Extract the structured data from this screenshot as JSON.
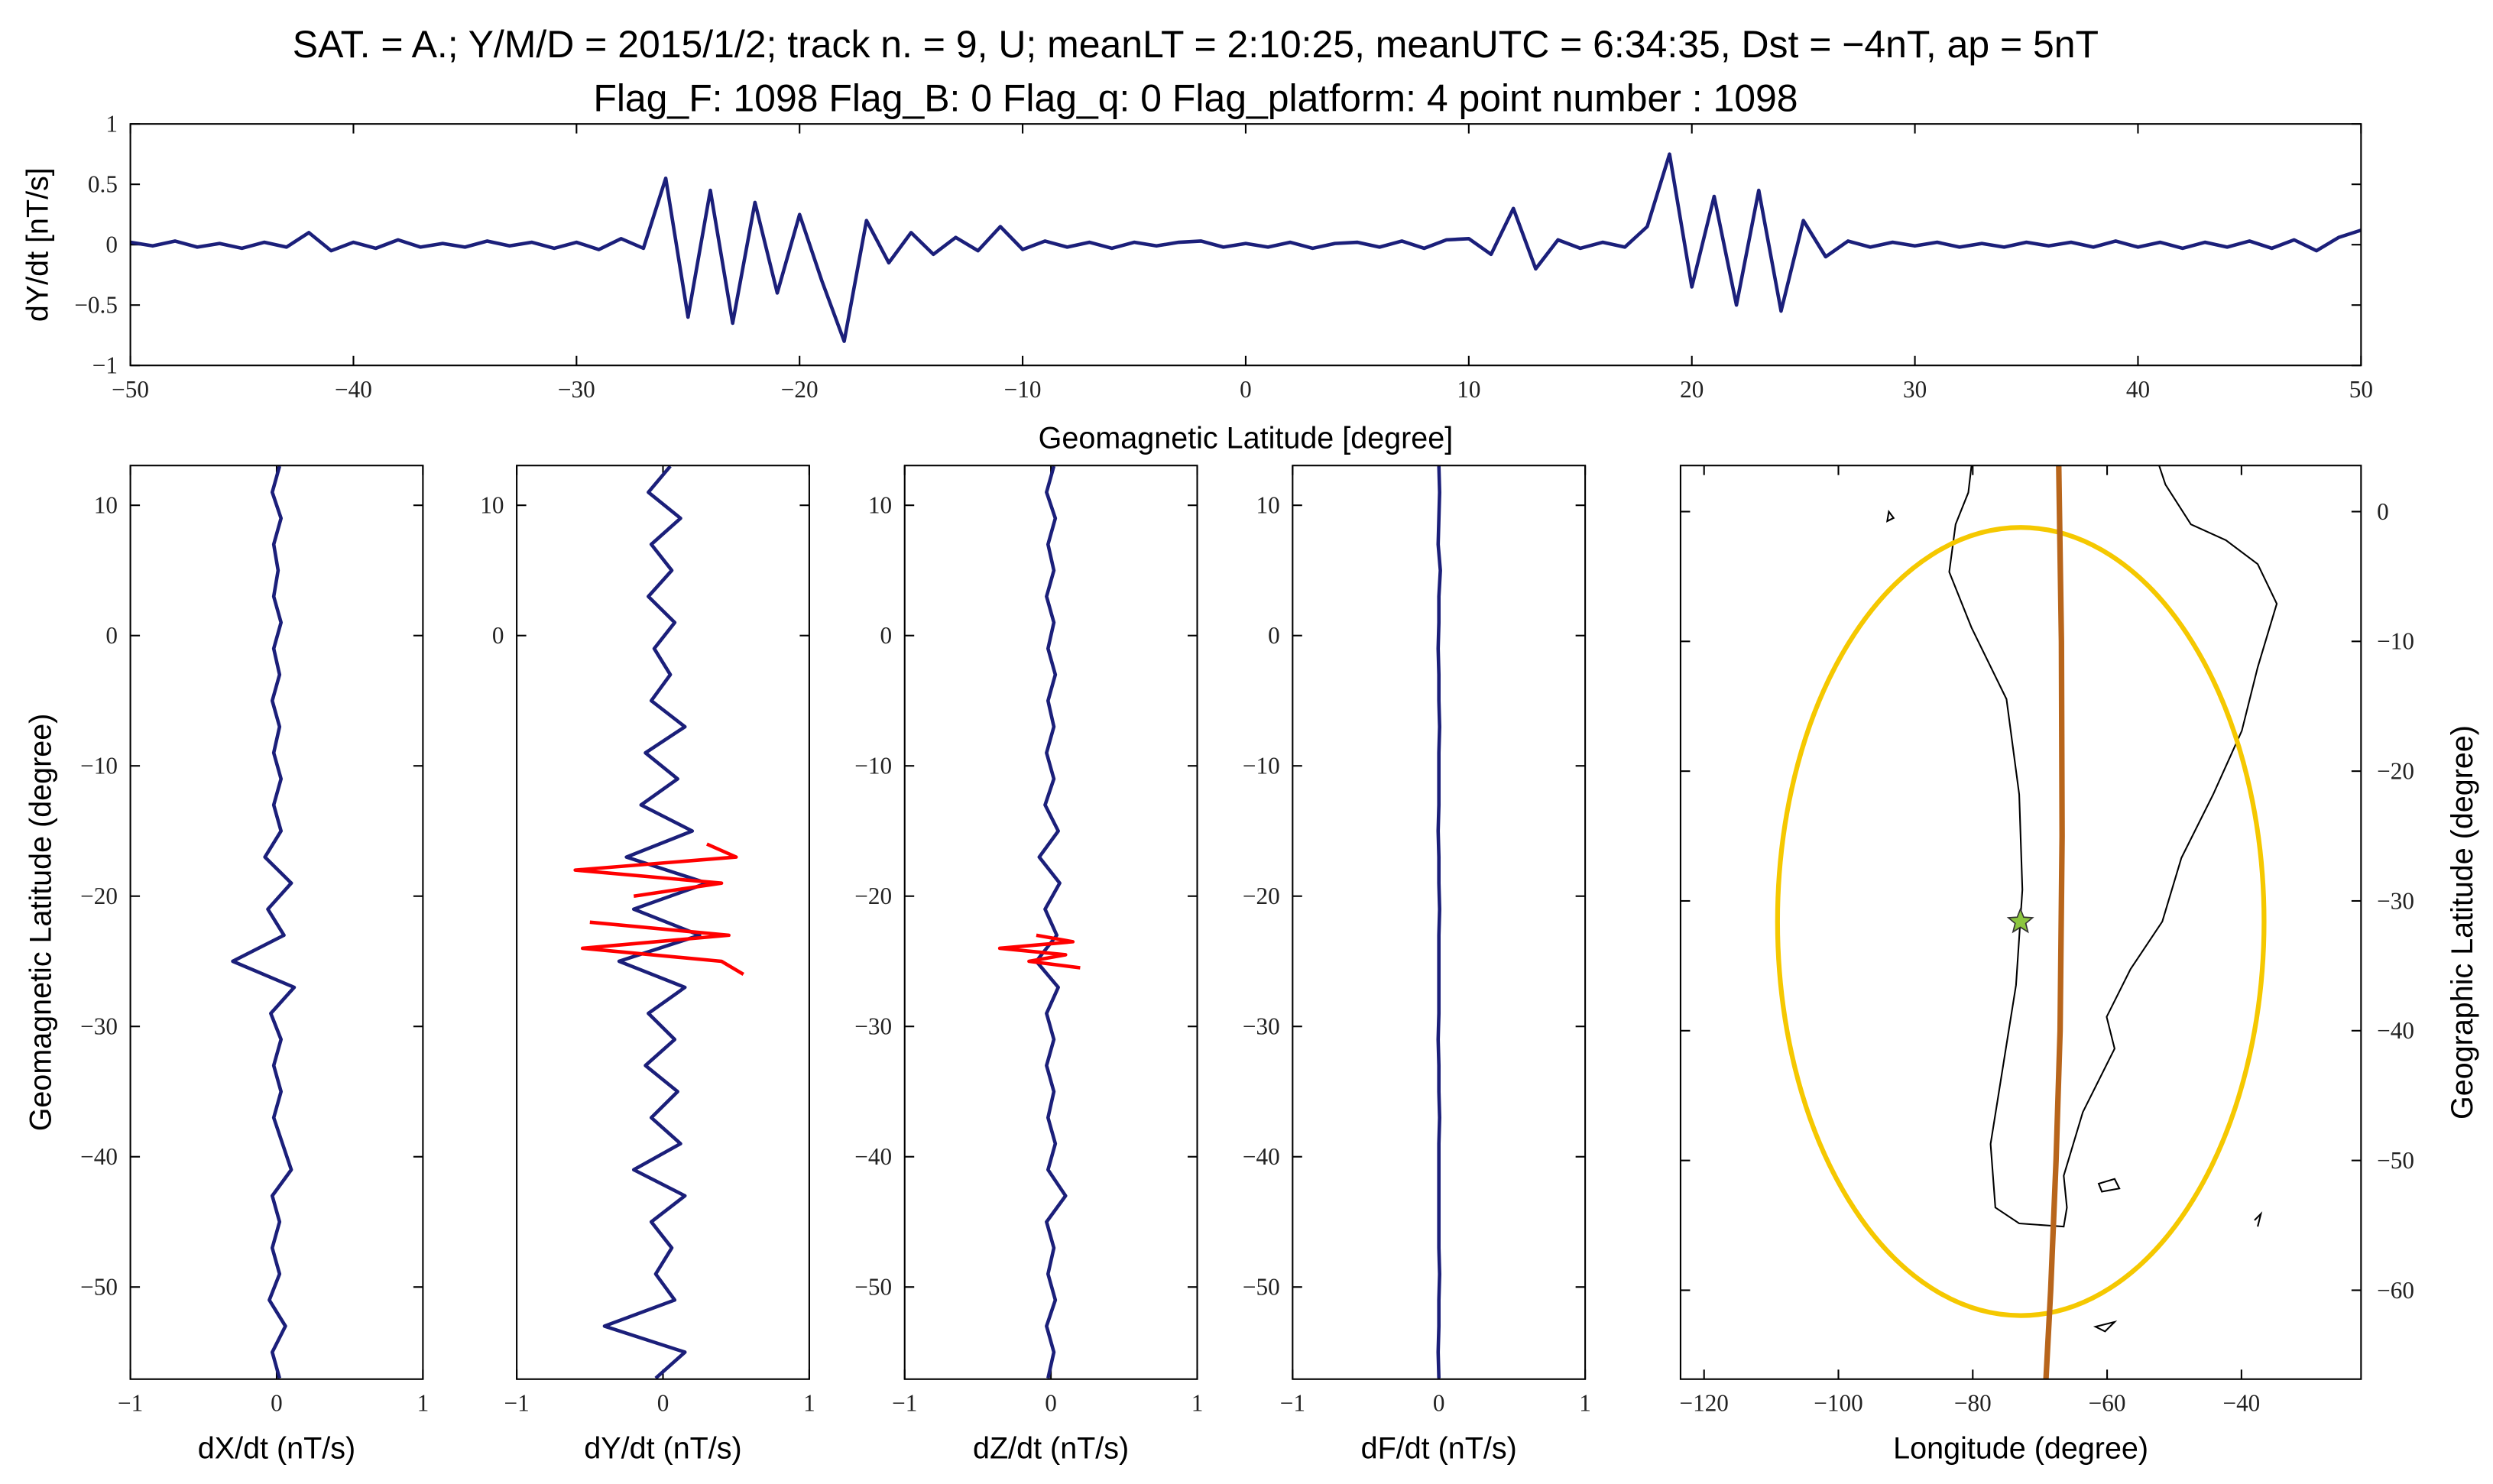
{
  "chart_data": [
    {
      "type": "line",
      "title": "SAT. = A.; Y/M/D = 2015/1/2; track n. = 9, U; meanLT = 2:10:25, meanUTC = 6:34:35, Dst = −4nT, ap = 5nT",
      "subtitle": "Flag_F: 1098 Flag_B: 0 Flag_q: 0 Flag_platform: 4 point number : 1098",
      "xlabel": "Geomagnetic Latitude [degree]",
      "ylabel": "dY/dt [nT/s]",
      "x": [
        -50,
        -49,
        -48,
        -47,
        -46,
        -45,
        -44,
        -43,
        -42,
        -41,
        -40,
        -39,
        -38,
        -37,
        -36,
        -35,
        -34,
        -33,
        -32,
        -31,
        -30,
        -29,
        -28,
        -27,
        -26,
        -25,
        -24,
        -23,
        -22,
        -21,
        -20,
        -19,
        -18,
        -17,
        -16,
        -15,
        -14,
        -13,
        -12,
        -11,
        -10,
        -9,
        -8,
        -7,
        -6,
        -5,
        -4,
        -3,
        -2,
        -1,
        0,
        1,
        2,
        3,
        4,
        5,
        6,
        7,
        8,
        9,
        10,
        11,
        12,
        13,
        14,
        15,
        16,
        17,
        18,
        19,
        20,
        21,
        22,
        23,
        24,
        25,
        26,
        27,
        28,
        29,
        30,
        31,
        32,
        33,
        34,
        35,
        36,
        37,
        38,
        39,
        40,
        41,
        42,
        43,
        44,
        45,
        46,
        47,
        48,
        49,
        50
      ],
      "series": [
        {
          "color": "#1b1f7a",
          "values": [
            0.02,
            -0.01,
            0.03,
            -0.02,
            0.01,
            -0.03,
            0.02,
            -0.02,
            0.1,
            -0.05,
            0.02,
            -0.03,
            0.04,
            -0.02,
            0.01,
            -0.02,
            0.03,
            -0.01,
            0.02,
            -0.03,
            0.02,
            -0.04,
            0.05,
            -0.03,
            0.55,
            -0.6,
            0.45,
            -0.65,
            0.35,
            -0.4,
            0.25,
            -0.3,
            -0.8,
            0.2,
            -0.15,
            0.1,
            -0.08,
            0.06,
            -0.05,
            0.15,
            -0.04,
            0.03,
            -0.02,
            0.02,
            -0.03,
            0.02,
            -0.01,
            0.02,
            0.03,
            -0.02,
            0.01,
            -0.02,
            0.02,
            -0.03,
            0.01,
            0.02,
            -0.02,
            0.03,
            -0.03,
            0.04,
            0.05,
            -0.08,
            0.3,
            -0.2,
            0.04,
            -0.03,
            0.02,
            -0.02,
            0.15,
            0.75,
            -0.35,
            0.4,
            -0.5,
            0.45,
            -0.55,
            0.2,
            -0.1,
            0.03,
            -0.02,
            0.02,
            -0.01,
            0.02,
            -0.02,
            0.01,
            -0.02,
            0.02,
            -0.01,
            0.02,
            -0.02,
            0.03,
            -0.02,
            0.02,
            -0.03,
            0.02,
            -0.02,
            0.03,
            -0.03,
            0.04,
            -0.05,
            0.06,
            0.12
          ]
        }
      ],
      "xlim": [
        -50,
        50
      ],
      "xticks": [
        {
          "value": -50,
          "label": "−50"
        },
        {
          "value": -40,
          "label": "−40"
        },
        {
          "value": -30,
          "label": "−30"
        },
        {
          "value": -20,
          "label": "−20"
        },
        {
          "value": -10,
          "label": "−10"
        },
        0,
        10,
        20,
        30,
        40,
        50
      ],
      "ylim": [
        -1,
        1
      ],
      "yticks": [
        {
          "value": -1,
          "label": "−1"
        },
        {
          "value": -0.5,
          "label": "−0.5"
        },
        0,
        0.5,
        1
      ]
    },
    {
      "type": "line",
      "orientation": "horizontal",
      "xlabel": "dX/dt (nT/s)",
      "ylabel": "Geomagnetic Latitude (degree)",
      "y": [
        13,
        11,
        9,
        7,
        5,
        3,
        1,
        -1,
        -3,
        -5,
        -7,
        -9,
        -11,
        -13,
        -15,
        -17,
        -19,
        -21,
        -23,
        -25,
        -27,
        -29,
        -31,
        -33,
        -35,
        -37,
        -39,
        -41,
        -43,
        -45,
        -47,
        -49,
        -51,
        -53,
        -55,
        -57
      ],
      "series": [
        {
          "color": "#1b1f7a",
          "values": [
            0.02,
            -0.03,
            0.03,
            -0.02,
            0.01,
            -0.02,
            0.03,
            -0.02,
            0.02,
            -0.03,
            0.02,
            -0.02,
            0.03,
            -0.02,
            0.03,
            -0.08,
            0.1,
            -0.06,
            0.05,
            -0.3,
            0.12,
            -0.04,
            0.03,
            -0.02,
            0.03,
            -0.02,
            0.04,
            0.1,
            -0.03,
            0.02,
            -0.03,
            0.02,
            -0.05,
            0.06,
            -0.03,
            0.02
          ]
        }
      ],
      "xlim": [
        -1,
        1
      ],
      "xticks": [
        {
          "value": -1,
          "label": "−1"
        },
        0,
        1
      ],
      "ylim": [
        -57.07,
        13.05
      ],
      "yticks": [
        {
          "value": -50,
          "label": "−50"
        },
        {
          "value": -40,
          "label": "−40"
        },
        {
          "value": -30,
          "label": "−30"
        },
        {
          "value": -20,
          "label": "−20"
        },
        {
          "value": -10,
          "label": "−10"
        },
        0,
        10
      ]
    },
    {
      "type": "line",
      "orientation": "horizontal",
      "xlabel": "dY/dt (nT/s)",
      "y": [
        13,
        11,
        9,
        7,
        5,
        3,
        1,
        -1,
        -3,
        -5,
        -7,
        -9,
        -11,
        -13,
        -15,
        -17,
        -19,
        -21,
        -23,
        -25,
        -27,
        -29,
        -31,
        -33,
        -35,
        -37,
        -39,
        -41,
        -43,
        -45,
        -47,
        -49,
        -51,
        -53,
        -55,
        -57
      ],
      "series": [
        {
          "color": "#1b1f7a",
          "values": [
            0.05,
            -0.1,
            0.12,
            -0.08,
            0.06,
            -0.1,
            0.08,
            -0.06,
            0.05,
            -0.08,
            0.15,
            -0.12,
            0.1,
            -0.15,
            0.2,
            -0.25,
            0.3,
            -0.2,
            0.25,
            -0.3,
            0.15,
            -0.1,
            0.08,
            -0.12,
            0.1,
            -0.08,
            0.12,
            -0.2,
            0.15,
            -0.08,
            0.06,
            -0.05,
            0.08,
            -0.4,
            0.15,
            -0.05
          ]
        },
        {
          "color": "#ff0000",
          "y": [
            -16,
            -17,
            -18,
            -19,
            -20,
            -21,
            -22,
            -23,
            -24,
            -25,
            -26
          ],
          "values": [
            0.3,
            0.5,
            -0.6,
            0.4,
            -0.2,
            null,
            -0.5,
            0.45,
            -0.55,
            0.4,
            0.55
          ]
        }
      ],
      "xlim": [
        -1,
        1
      ],
      "xticks": [
        {
          "value": -1,
          "label": "−1"
        },
        0,
        1
      ],
      "ylim": [
        -57.07,
        13.05
      ],
      "yticks": [
        0,
        10
      ]
    },
    {
      "type": "line",
      "orientation": "horizontal",
      "xlabel": "dZ/dt (nT/s)",
      "y": [
        13,
        11,
        9,
        7,
        5,
        3,
        1,
        -1,
        -3,
        -5,
        -7,
        -9,
        -11,
        -13,
        -15,
        -17,
        -19,
        -21,
        -23,
        -25,
        -27,
        -29,
        -31,
        -33,
        -35,
        -37,
        -39,
        -41,
        -43,
        -45,
        -47,
        -49,
        -51,
        -53,
        -55,
        -57
      ],
      "series": [
        {
          "color": "#1b1f7a",
          "values": [
            0.02,
            -0.03,
            0.03,
            -0.02,
            0.02,
            -0.03,
            0.02,
            -0.02,
            0.03,
            -0.02,
            0.02,
            -0.03,
            0.02,
            -0.04,
            0.05,
            -0.08,
            0.06,
            -0.04,
            0.04,
            -0.1,
            0.05,
            -0.03,
            0.02,
            -0.03,
            0.02,
            -0.02,
            0.03,
            -0.02,
            0.1,
            -0.03,
            0.02,
            -0.02,
            0.03,
            -0.03,
            0.02,
            -0.02
          ]
        },
        {
          "color": "#ff0000",
          "y": [
            -23,
            -23.5,
            -24,
            -24.5,
            -25,
            -25.5
          ],
          "values": [
            -0.1,
            0.15,
            -0.35,
            0.1,
            -0.15,
            0.2
          ]
        }
      ],
      "xlim": [
        -1,
        1
      ],
      "xticks": [
        {
          "value": -1,
          "label": "−1"
        },
        0,
        1
      ],
      "ylim": [
        -57.07,
        13.05
      ],
      "yticks": [
        {
          "value": -50,
          "label": "−50"
        },
        {
          "value": -40,
          "label": "−40"
        },
        {
          "value": -30,
          "label": "−30"
        },
        {
          "value": -20,
          "label": "−20"
        },
        {
          "value": -10,
          "label": "−10"
        },
        0,
        10
      ]
    },
    {
      "type": "line",
      "orientation": "horizontal",
      "xlabel": "dF/dt (nT/s)",
      "y": [
        13,
        11,
        9,
        7,
        5,
        3,
        1,
        -1,
        -3,
        -5,
        -7,
        -9,
        -11,
        -13,
        -15,
        -17,
        -19,
        -21,
        -23,
        -25,
        -27,
        -29,
        -31,
        -33,
        -35,
        -37,
        -39,
        -41,
        -43,
        -45,
        -47,
        -49,
        -51,
        -53,
        -55,
        -57
      ],
      "series": [
        {
          "color": "#1b1f7a",
          "values": [
            0,
            0.005,
            0,
            -0.005,
            0.01,
            0,
            0,
            -0.005,
            0,
            0,
            0.005,
            0,
            0,
            0,
            -0.005,
            0,
            0,
            0.005,
            0,
            0,
            0,
            0,
            -0.005,
            0,
            0,
            0.005,
            0,
            0,
            0,
            0,
            0,
            0.005,
            0,
            0,
            -0.005,
            0
          ]
        }
      ],
      "xlim": [
        -1,
        1
      ],
      "xticks": [
        {
          "value": -1,
          "label": "−1"
        },
        0,
        1
      ],
      "ylim": [
        -57.07,
        13.05
      ],
      "yticks": [
        {
          "value": -50,
          "label": "−50"
        },
        {
          "value": -40,
          "label": "−40"
        },
        {
          "value": -30,
          "label": "−30"
        },
        {
          "value": -20,
          "label": "−20"
        },
        {
          "value": -10,
          "label": "−10"
        },
        0,
        10
      ]
    },
    {
      "type": "map",
      "xlabel": "Longitude (degree)",
      "ylabel": "Geographic Latitude (degree)",
      "xlim": [
        -123.5,
        -22.2
      ],
      "xticks": [
        {
          "value": -120,
          "label": "−120"
        },
        {
          "value": -100,
          "label": "−100"
        },
        {
          "value": -80,
          "label": "−80"
        },
        {
          "value": -60,
          "label": "−60"
        },
        {
          "value": -40,
          "label": "−40"
        }
      ],
      "ylim": [
        -66.85,
        3.55
      ],
      "yticks": [
        0,
        {
          "value": -10,
          "label": "−10"
        },
        {
          "value": -20,
          "label": "−20"
        },
        {
          "value": -30,
          "label": "−30"
        },
        {
          "value": -40,
          "label": "−40"
        },
        {
          "value": -50,
          "label": "−50"
        },
        {
          "value": -60,
          "label": "−60"
        }
      ],
      "track": {
        "color": "#b8651b",
        "lon": [
          -67.2,
          -66.8,
          -66.7,
          -67.0,
          -67.6,
          -68.4,
          -69.1
        ],
        "lat": [
          3.55,
          -10,
          -25,
          -40,
          -50,
          -60,
          -66.85
        ]
      },
      "event": {
        "color": "#8cc63f",
        "lon": -72.9,
        "lat": -31.6
      }
    }
  ]
}
